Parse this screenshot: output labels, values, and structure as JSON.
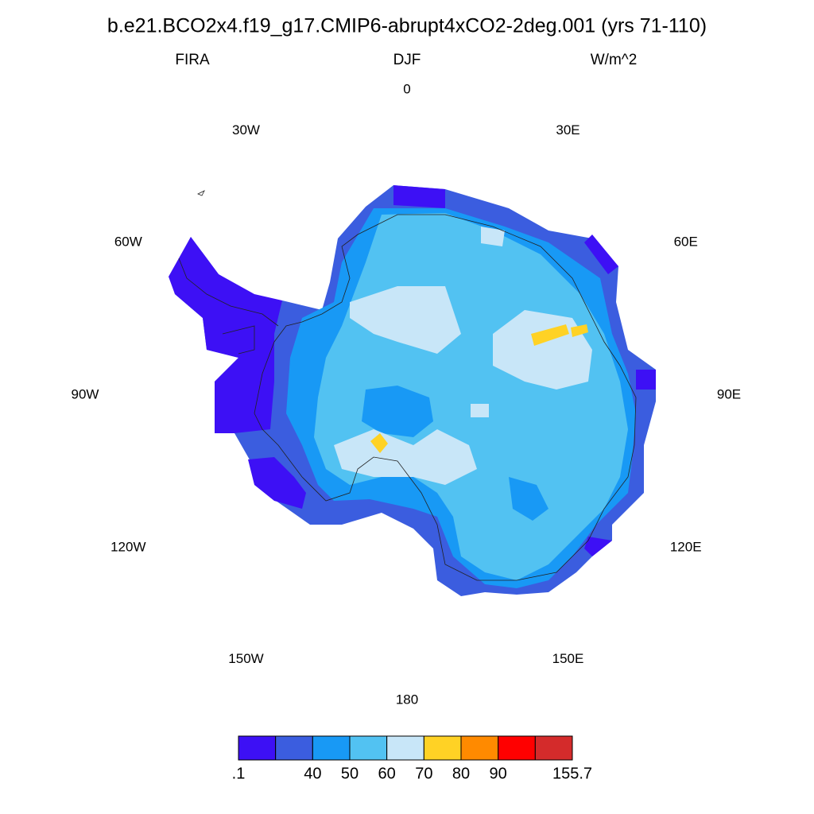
{
  "title": "b.e21.BCO2x4.f19_g17.CMIP6-abrupt4xCO2-2deg.001 (yrs 71-110)",
  "subtitle_left": "FIRA",
  "subtitle_center": "DJF",
  "subtitle_right": "W/m^2",
  "longitude_labels": [
    "0",
    "30E",
    "60E",
    "90E",
    "120E",
    "150E",
    "180",
    "150W",
    "120W",
    "90W",
    "60W",
    "30W"
  ],
  "colorbar": {
    "colors": [
      "#3d10f5",
      "#3b5ddf",
      "#1899f5",
      "#52c2f2",
      "#c8e6f8",
      "#ffd225",
      "#ff8a00",
      "#ff0000",
      "#d42b2b"
    ],
    "boundary_labels": [
      ".1",
      null,
      "40",
      "50",
      "60",
      "70",
      "80",
      "90",
      null,
      "155.7"
    ]
  }
}
